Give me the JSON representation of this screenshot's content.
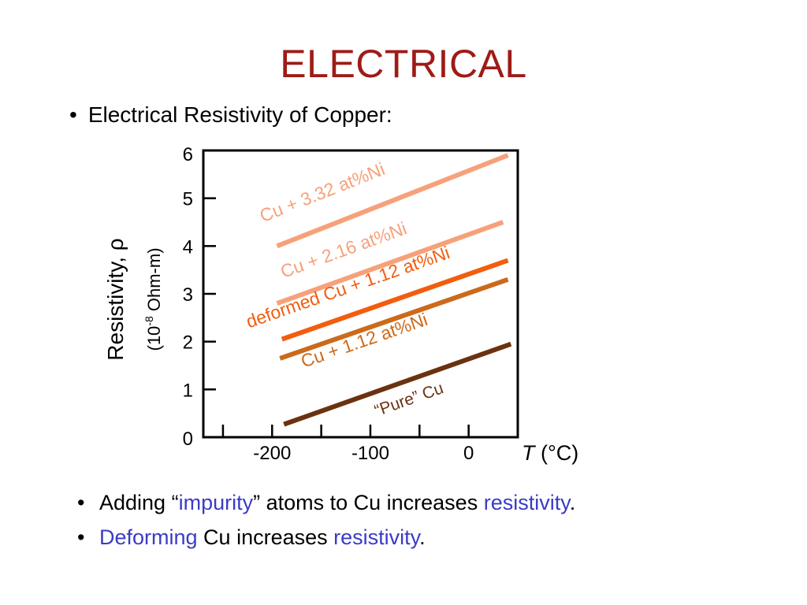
{
  "slide": {
    "title": "ELECTRICAL",
    "bullet": "Electrical Resistivity of Copper:"
  },
  "notes": [
    {
      "parts": [
        {
          "text": "Adding “",
          "highlight": false
        },
        {
          "text": "impurity",
          "highlight": true
        },
        {
          "text": "” atoms to Cu increases ",
          "highlight": false
        },
        {
          "text": "resistivity",
          "highlight": true
        },
        {
          "text": ".",
          "highlight": false
        }
      ]
    },
    {
      "parts": [
        {
          "text": "Deforming",
          "highlight": true
        },
        {
          "text": " Cu increases ",
          "highlight": false
        },
        {
          "text": "resistivity",
          "highlight": true
        },
        {
          "text": ".",
          "highlight": false
        }
      ]
    }
  ],
  "colors": {
    "title": "#9e1b17",
    "highlight": "#3b3bc8",
    "axis": "#000000"
  },
  "chart_data": {
    "type": "line",
    "xlabel_symbol": "T",
    "xlabel_unit": " (°C)",
    "ylabel_main": "Resistivity, ρ",
    "ylabel_unit_pre": "(10",
    "ylabel_unit_exp": "-8",
    "ylabel_unit_post": " Ohm-m)",
    "xlim": [
      -270,
      50
    ],
    "ylim": [
      0,
      6
    ],
    "x_ticks": [
      -250,
      -200,
      -150,
      -100,
      -50,
      0,
      50
    ],
    "x_tick_labels": [
      {
        "value": -200,
        "label": "-200"
      },
      {
        "value": -100,
        "label": "-100"
      },
      {
        "value": 0,
        "label": "0"
      }
    ],
    "y_ticks": [
      0,
      1,
      2,
      3,
      4,
      5,
      6
    ],
    "y_tick_labels": [
      "0",
      "1",
      "2",
      "3",
      "4",
      "5",
      "6"
    ],
    "grid": false,
    "series": [
      {
        "name": "Cu + 3.32 at%Ni",
        "color": "#f6a17a",
        "x": [
          -195,
          40
        ],
        "y": [
          4.0,
          5.9
        ]
      },
      {
        "name": "Cu + 2.16 at%Ni",
        "color": "#f6a17a",
        "x": [
          -195,
          35
        ],
        "y": [
          2.8,
          4.5
        ]
      },
      {
        "name": "deformed Cu + 1.12 at%Ni",
        "color": "#f25d0e",
        "x": [
          -190,
          40
        ],
        "y": [
          2.05,
          3.7
        ]
      },
      {
        "name": "Cu + 1.12 at%Ni",
        "color": "#cb6a1b",
        "x": [
          -192,
          40
        ],
        "y": [
          1.65,
          3.3
        ]
      },
      {
        "name": "“Pure” Cu",
        "color": "#6b3210",
        "x": [
          -188,
          43
        ],
        "y": [
          0.27,
          1.95
        ]
      }
    ]
  }
}
